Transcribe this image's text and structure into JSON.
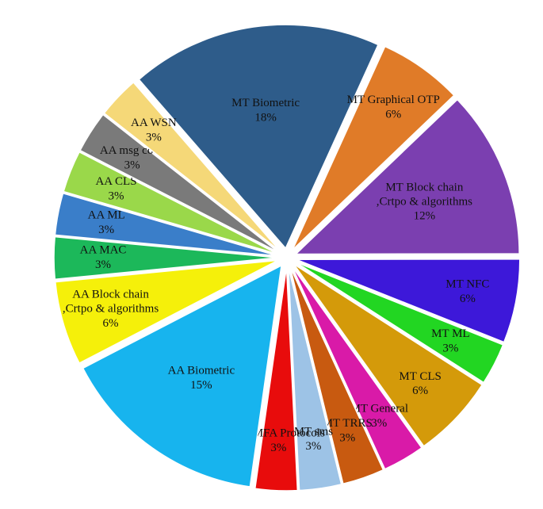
{
  "chart_data": {
    "type": "pie",
    "categories": [
      "MT Biometric",
      "MT Graphical OTP",
      "MT Block chain\n,Crtpo & algorithms",
      "MT NFC",
      "MT ML",
      "MT CLS",
      "MT General",
      "MT TRRS",
      "MT sms",
      "MT MFA Protocols",
      "AA Biometric",
      "AA Block chain\n,Crtpo & algorithms",
      "AA MAC",
      "AA ML",
      "AA CLS",
      "AA msg code",
      "AA WSN"
    ],
    "values": [
      18,
      6,
      12,
      6,
      3,
      6,
      3,
      3,
      3,
      3,
      15,
      6,
      3,
      3,
      3,
      3,
      3
    ],
    "value_labels": [
      "18%",
      "6%",
      "12%",
      "6%",
      "3%",
      "6%",
      "3%",
      "3%",
      "3%",
      "3%",
      "15%",
      "6%",
      "3%",
      "3%",
      "3%",
      "3%",
      "3%"
    ],
    "colors": [
      "#2e5c8a",
      "#e07b28",
      "#7b3fb0",
      "#3d18d9",
      "#22d622",
      "#d49a0a",
      "#d91aa8",
      "#c85a10",
      "#9dc3e6",
      "#e80c0c",
      "#17b4ee",
      "#f5f00a",
      "#1cb85a",
      "#3a7ec9",
      "#9ad84a",
      "#7a7a7a",
      "#f5d878"
    ]
  }
}
